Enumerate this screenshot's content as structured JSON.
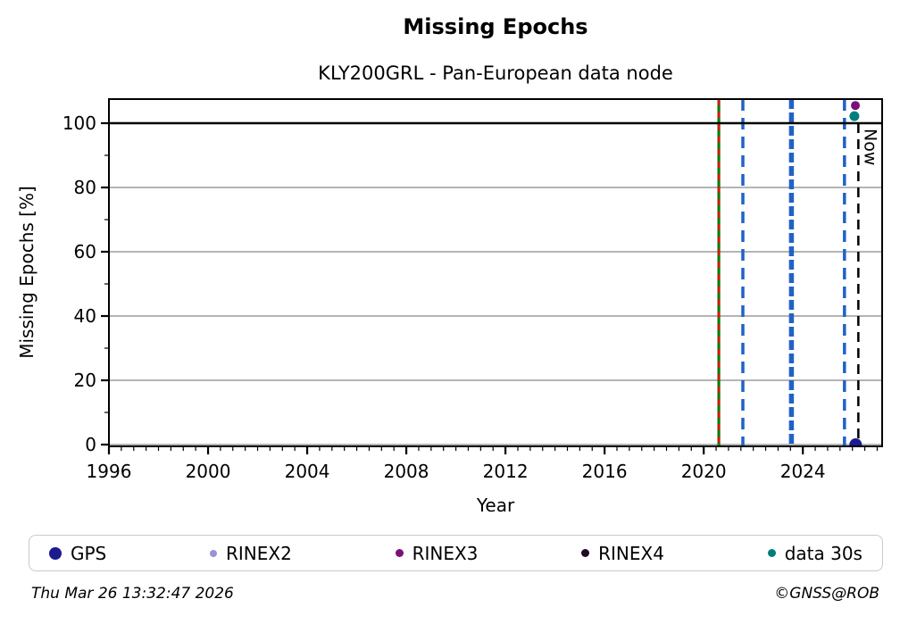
{
  "footer": {
    "timestamp": "Thu Mar 26 13:32:47 2026",
    "credit": "©GNSS@ROB"
  },
  "chart_data": {
    "type": "scatter",
    "title": "Missing Epochs",
    "subtitle": "KLY200GRL - Pan-European data node",
    "xlabel": "Year",
    "ylabel": "Missing Epochs [%]",
    "xlim": [
      1996,
      2027.2
    ],
    "ylim": [
      -0.55,
      107.5
    ],
    "xticks": [
      1996,
      2000,
      2004,
      2008,
      2012,
      2016,
      2020,
      2024
    ],
    "yticks": [
      0,
      20,
      40,
      60,
      80,
      100
    ],
    "x_minor_step": 0.5,
    "y_minor_step": 10,
    "grid_y": [
      0,
      20,
      40,
      60,
      80
    ],
    "grid_color": "#b4b4b4",
    "ref_line_y": 100,
    "ref_line_color": "#000000",
    "now_label": "Now",
    "vlines": [
      {
        "name": "event-line-green-red",
        "x": 2020.61,
        "color": "#008000",
        "width": 3.2,
        "dash": "",
        "overlay_color": "#dd1111",
        "overlay_width": 2.6,
        "overlay_dash": "7 7"
      },
      {
        "name": "event-line-blue-1",
        "x": 2021.58,
        "color": "#2062c8",
        "width": 3.5,
        "dash": "13 8"
      },
      {
        "name": "event-line-blue-2",
        "x": 2023.54,
        "color": "#2062c8",
        "width": 5.5,
        "dash": "11 4"
      },
      {
        "name": "event-line-blue-3",
        "x": 2025.68,
        "color": "#2062c8",
        "width": 3.5,
        "dash": "13 8"
      },
      {
        "name": "now-line",
        "x": 2026.24,
        "color": "#000000",
        "width": 2.5,
        "dash": "11 7",
        "y_top": 100,
        "label": "Now"
      }
    ],
    "points": [
      {
        "series": "RINEX3",
        "x": 2026.12,
        "y": 105.5,
        "color": "#7b0f7b",
        "r": 5
      },
      {
        "series": "data 30s",
        "x": 2026.08,
        "y": 102.2,
        "color": "#007d7d",
        "r": 5.5
      },
      {
        "series": "GPS",
        "x": 2026.13,
        "y": 0,
        "color": "#1b1b8f",
        "r": 7
      }
    ],
    "legend": [
      {
        "label": "GPS",
        "color": "#1b1b8f",
        "size": 14
      },
      {
        "label": "RINEX2",
        "color": "#9793d4",
        "size": 8
      },
      {
        "label": "RINEX3",
        "color": "#7b0f7b",
        "size": 9
      },
      {
        "label": "RINEX4",
        "color": "#230827",
        "size": 9
      },
      {
        "label": "data 30s",
        "color": "#007d7d",
        "size": 9
      }
    ]
  }
}
